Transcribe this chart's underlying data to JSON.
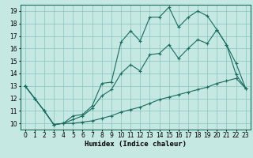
{
  "xlabel": "Humidex (Indice chaleur)",
  "bg_color": "#c5e8e3",
  "grid_color": "#88c4bc",
  "line_color": "#1a6b60",
  "xlim": [
    -0.5,
    23.5
  ],
  "ylim": [
    9.5,
    19.5
  ],
  "xticks": [
    0,
    1,
    2,
    3,
    4,
    5,
    6,
    7,
    8,
    9,
    10,
    11,
    12,
    13,
    14,
    15,
    16,
    17,
    18,
    19,
    20,
    21,
    22,
    23
  ],
  "yticks": [
    10,
    11,
    12,
    13,
    14,
    15,
    16,
    17,
    18,
    19
  ],
  "line1_x": [
    0,
    1,
    2,
    3,
    4,
    5,
    6,
    7,
    8,
    9,
    10,
    11,
    12,
    13,
    14,
    15,
    16,
    17,
    18,
    19,
    20,
    21,
    22,
    23
  ],
  "line1_y": [
    13.0,
    12.0,
    11.0,
    9.9,
    10.0,
    10.6,
    10.7,
    11.4,
    13.2,
    13.3,
    16.5,
    17.4,
    16.6,
    18.5,
    18.5,
    19.3,
    17.7,
    18.5,
    19.0,
    18.6,
    17.5,
    16.3,
    13.9,
    12.8
  ],
  "line2_x": [
    0,
    1,
    2,
    3,
    4,
    5,
    6,
    7,
    8,
    9,
    10,
    11,
    12,
    13,
    14,
    15,
    16,
    17,
    18,
    19,
    20,
    21,
    22,
    23
  ],
  "line2_y": [
    13.0,
    12.0,
    11.0,
    9.9,
    10.0,
    10.3,
    10.6,
    11.2,
    12.2,
    12.7,
    14.0,
    14.7,
    14.2,
    15.5,
    15.6,
    16.3,
    15.2,
    16.0,
    16.7,
    16.4,
    17.5,
    16.3,
    14.8,
    12.8
  ],
  "line3_x": [
    0,
    1,
    2,
    3,
    4,
    5,
    6,
    7,
    8,
    9,
    10,
    11,
    12,
    13,
    14,
    15,
    16,
    17,
    18,
    19,
    20,
    21,
    22,
    23
  ],
  "line3_y": [
    13.0,
    12.0,
    11.0,
    9.9,
    10.0,
    10.0,
    10.1,
    10.2,
    10.4,
    10.6,
    10.9,
    11.1,
    11.3,
    11.6,
    11.9,
    12.1,
    12.3,
    12.5,
    12.7,
    12.9,
    13.2,
    13.4,
    13.6,
    12.8
  ],
  "xlabel_fontsize": 6.5,
  "tick_fontsize": 5.5
}
